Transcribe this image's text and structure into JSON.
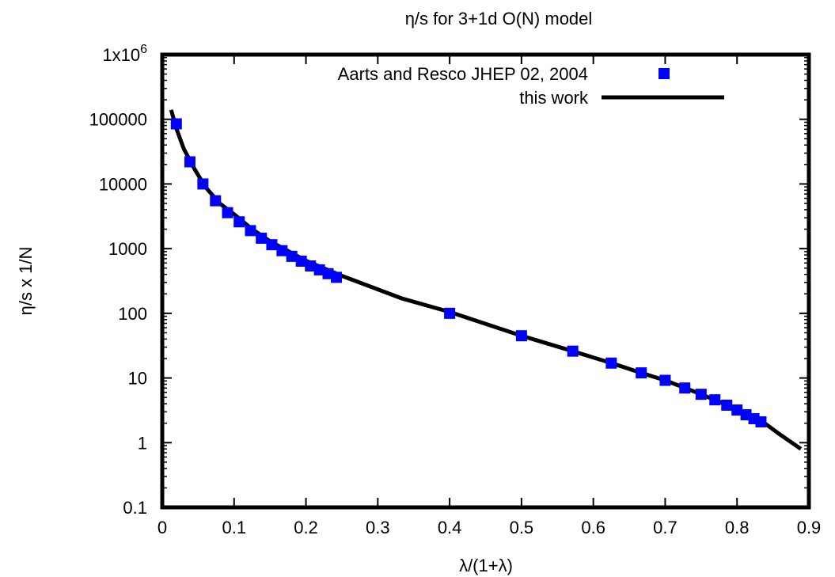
{
  "chart_data": {
    "type": "scatter",
    "title": "η/s for 3+1d O(N) model",
    "xlabel": "λ/(1+λ)",
    "ylabel": "η/s x 1/N",
    "xlim": [
      0,
      0.9
    ],
    "ylim": [
      0.1,
      1000000
    ],
    "y_scale": "log",
    "grid": false,
    "legend_position": "top-right",
    "x_ticks": [
      {
        "value": 0,
        "label": "0"
      },
      {
        "value": 0.1,
        "label": "0.1"
      },
      {
        "value": 0.2,
        "label": "0.2"
      },
      {
        "value": 0.3,
        "label": "0.3"
      },
      {
        "value": 0.4,
        "label": "0.4"
      },
      {
        "value": 0.5,
        "label": "0.5"
      },
      {
        "value": 0.6,
        "label": "0.6"
      },
      {
        "value": 0.7,
        "label": "0.7"
      },
      {
        "value": 0.8,
        "label": "0.8"
      },
      {
        "value": 0.9,
        "label": "0.9"
      }
    ],
    "y_ticks": [
      {
        "value": 0.1,
        "label": "0.1"
      },
      {
        "value": 1,
        "label": "1"
      },
      {
        "value": 10,
        "label": "10"
      },
      {
        "value": 100,
        "label": "100"
      },
      {
        "value": 1000,
        "label": "1000"
      },
      {
        "value": 10000,
        "label": "10000"
      },
      {
        "value": 100000,
        "label": "100000"
      },
      {
        "value": 1000000,
        "label_base": "1x10",
        "label_exp": "6"
      }
    ],
    "series": [
      {
        "name": "Aarts and Resco JHEP 02, 2004",
        "kind": "points",
        "color": "#0000ff",
        "x": [
          0.0196,
          0.0385,
          0.0566,
          0.0741,
          0.0909,
          0.1071,
          0.1228,
          0.1379,
          0.1525,
          0.1667,
          0.1803,
          0.1935,
          0.2063,
          0.2188,
          0.2308,
          0.2424,
          0.4,
          0.5,
          0.5714,
          0.625,
          0.6667,
          0.7,
          0.7273,
          0.75,
          0.7692,
          0.7857,
          0.8,
          0.8125,
          0.8235,
          0.8333
        ],
        "y": [
          85000,
          22000,
          10000,
          5500,
          3600,
          2600,
          1900,
          1450,
          1150,
          930,
          760,
          640,
          540,
          470,
          410,
          360,
          100,
          45,
          26,
          17,
          12,
          9.2,
          7.0,
          5.6,
          4.6,
          3.8,
          3.2,
          2.7,
          2.35,
          2.1
        ]
      },
      {
        "name": "this work",
        "kind": "line",
        "color": "#000000",
        "x": [
          0.0123,
          0.02,
          0.03,
          0.045,
          0.06,
          0.08,
          0.1,
          0.125,
          0.15,
          0.2,
          0.25,
          0.3333,
          0.4,
          0.5,
          0.5714,
          0.625,
          0.6667,
          0.7,
          0.75,
          0.8,
          0.8333,
          0.8571,
          0.8889
        ],
        "y": [
          140000,
          70000,
          35000,
          17000,
          9000,
          5000,
          3400,
          2000,
          1300,
          650,
          380,
          170,
          105,
          45,
          26,
          17,
          12,
          9.2,
          5.6,
          3.3,
          2.2,
          1.4,
          0.8
        ]
      }
    ]
  }
}
